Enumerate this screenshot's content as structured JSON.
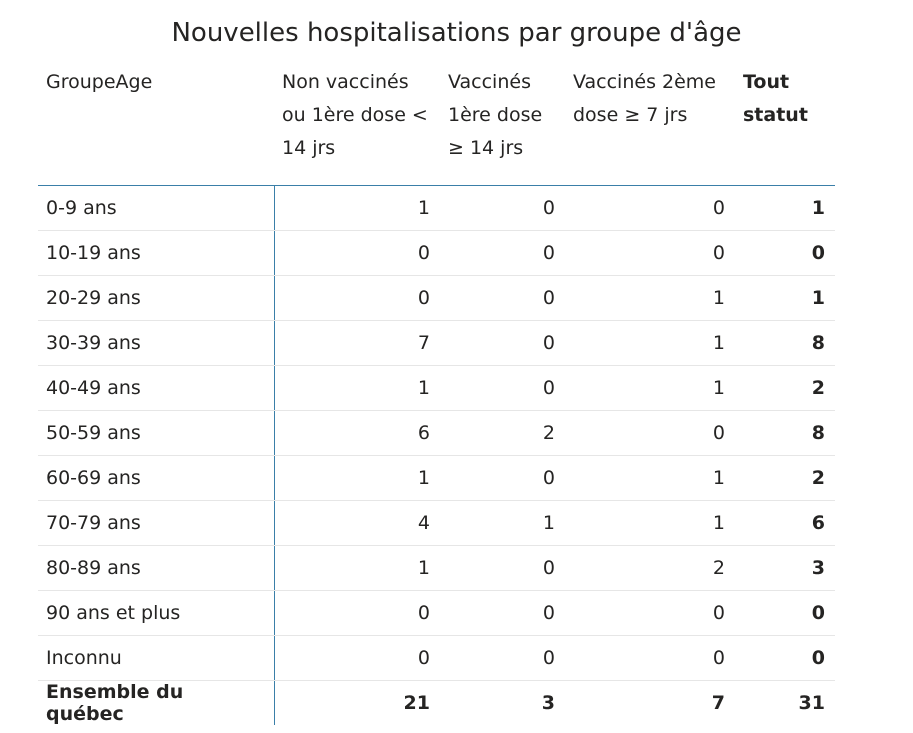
{
  "title": "Nouvelles hospitalisations par groupe d'âge",
  "table": {
    "headers": [
      "GroupeAge",
      "Non vaccinés ou 1ère dose < 14 jrs",
      "Vaccinés 1ère dose ≥ 14 jrs",
      "Vaccinés 2ème dose ≥ 7 jrs",
      "Tout statut"
    ],
    "rows": [
      [
        "0-9 ans",
        1,
        0,
        0,
        1
      ],
      [
        "10-19 ans",
        0,
        0,
        0,
        0
      ],
      [
        "20-29 ans",
        0,
        0,
        1,
        1
      ],
      [
        "30-39 ans",
        7,
        0,
        1,
        8
      ],
      [
        "40-49 ans",
        1,
        0,
        1,
        2
      ],
      [
        "50-59 ans",
        6,
        2,
        0,
        8
      ],
      [
        "60-69 ans",
        1,
        0,
        1,
        2
      ],
      [
        "70-79 ans",
        4,
        1,
        1,
        6
      ],
      [
        "80-89 ans",
        1,
        0,
        2,
        3
      ],
      [
        "90 ans et plus",
        0,
        0,
        0,
        0
      ],
      [
        "Inconnu",
        0,
        0,
        0,
        0
      ]
    ],
    "total": [
      "Ensemble du québec",
      21,
      3,
      7,
      31
    ]
  }
}
